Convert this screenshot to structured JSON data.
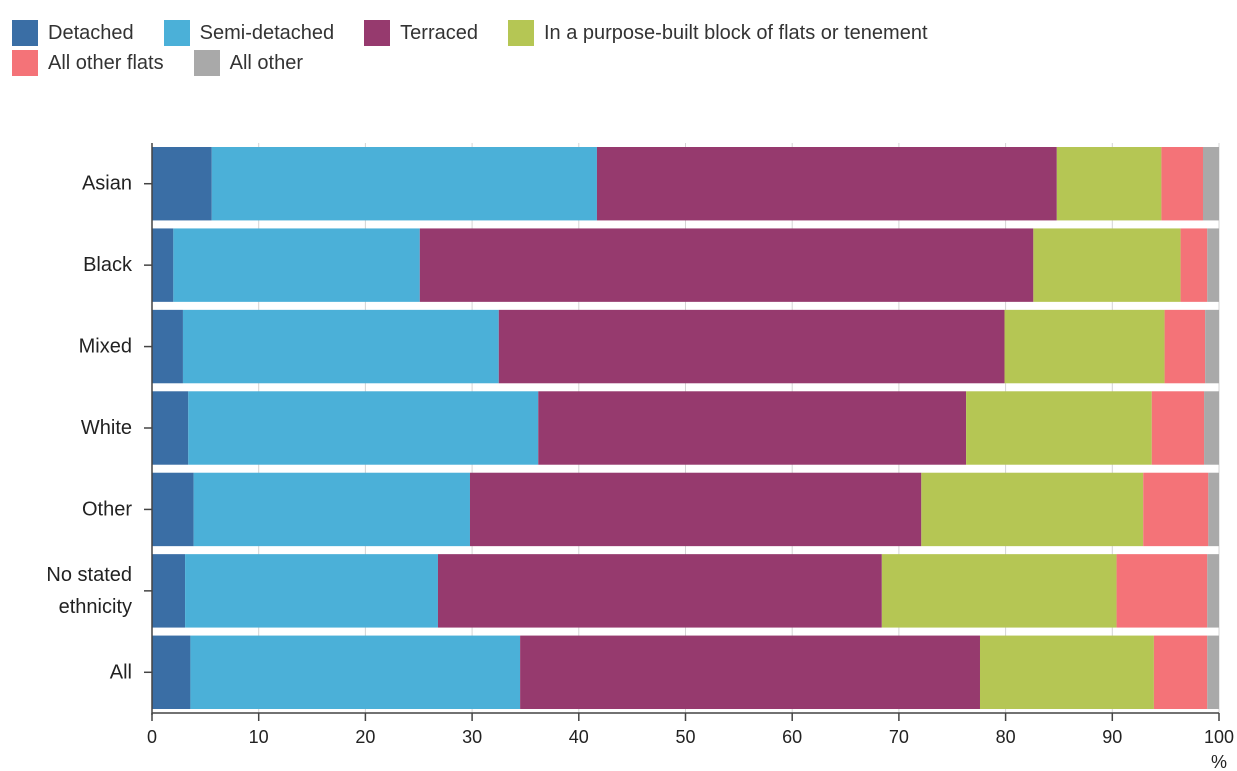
{
  "chart_data": {
    "type": "bar",
    "orientation": "horizontal",
    "stacked": true,
    "categories": [
      "Asian",
      "Black",
      "Mixed",
      "White",
      "Other",
      "No stated ethnicity",
      "All"
    ],
    "category_lines": [
      [
        "Asian"
      ],
      [
        "Black"
      ],
      [
        "Mixed"
      ],
      [
        "White"
      ],
      [
        "Other"
      ],
      [
        "No stated",
        "ethnicity"
      ],
      [
        "All"
      ]
    ],
    "series": [
      {
        "name": "Detached",
        "color": "#3a6ea5",
        "values": [
          5.6,
          2.0,
          2.9,
          3.4,
          3.9,
          3.1,
          3.6
        ]
      },
      {
        "name": "Semi-detached",
        "color": "#4bb0d8",
        "values": [
          36.1,
          23.1,
          29.6,
          32.8,
          25.9,
          23.7,
          30.9
        ]
      },
      {
        "name": "Terraced",
        "color": "#963a6e",
        "values": [
          43.1,
          57.5,
          47.4,
          40.1,
          42.3,
          41.6,
          43.1
        ]
      },
      {
        "name": "In a purpose-built block of flats or tenement",
        "color": "#b5c654",
        "values": [
          9.8,
          13.8,
          15.0,
          17.4,
          20.8,
          22.0,
          16.3
        ]
      },
      {
        "name": "All other flats",
        "color": "#f47378",
        "values": [
          3.9,
          2.5,
          3.8,
          4.9,
          6.1,
          8.5,
          5.0
        ]
      },
      {
        "name": "All other",
        "color": "#a9a9a9",
        "values": [
          1.5,
          1.1,
          1.3,
          1.4,
          1.0,
          1.1,
          1.1
        ]
      }
    ],
    "xlim": [
      0,
      100
    ],
    "xticks": [
      0,
      10,
      20,
      30,
      40,
      50,
      60,
      70,
      80,
      90,
      100
    ],
    "xlabel": "%",
    "grid": "vertical",
    "legend_position": "top-left"
  }
}
